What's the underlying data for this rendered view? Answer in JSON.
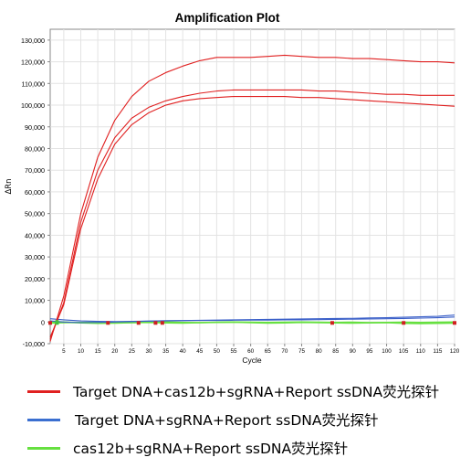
{
  "chart_data": {
    "type": "line",
    "title": "Amplification Plot",
    "xlabel": "Cycle",
    "ylabel": "ΔRn",
    "xlim": [
      1,
      120
    ],
    "ylim": [
      -10000,
      135000
    ],
    "x_ticks": [
      5,
      10,
      15,
      20,
      25,
      30,
      35,
      40,
      45,
      50,
      55,
      60,
      65,
      70,
      75,
      80,
      85,
      90,
      95,
      100,
      105,
      110,
      115,
      120
    ],
    "y_ticks": [
      -10000,
      0,
      10000,
      20000,
      30000,
      40000,
      50000,
      60000,
      70000,
      80000,
      90000,
      100000,
      110000,
      120000,
      130000
    ],
    "y_tick_labels": [
      "-10,000",
      "0",
      "10,000",
      "20,000",
      "30,000",
      "40,000",
      "50,000",
      "60,000",
      "70,000",
      "80,000",
      "90,000",
      "100,000",
      "110,000",
      "120,000",
      "130,000"
    ],
    "grid": true,
    "legend_position": "bottom",
    "x": [
      1,
      5,
      10,
      15,
      20,
      25,
      30,
      35,
      40,
      45,
      50,
      55,
      60,
      65,
      70,
      75,
      80,
      85,
      90,
      95,
      100,
      105,
      110,
      115,
      120
    ],
    "series": [
      {
        "name": "Target DNA+cas12b+sgRNA+Report ssDNA荧光探针",
        "color": "#e02020",
        "values": [
          -9000,
          12000,
          50000,
          76000,
          93000,
          104000,
          111000,
          115000,
          118000,
          120500,
          122000,
          122000,
          122000,
          122500,
          123000,
          122500,
          122000,
          122000,
          121500,
          121500,
          121000,
          120500,
          120000,
          120000,
          119500
        ]
      },
      {
        "name": "",
        "color": "#e02020",
        "values": [
          -8000,
          9000,
          46000,
          70000,
          85000,
          94000,
          99000,
          102000,
          104000,
          105500,
          106500,
          107000,
          107000,
          107000,
          107000,
          107000,
          106500,
          106500,
          106000,
          105500,
          105000,
          105000,
          104500,
          104500,
          104500
        ]
      },
      {
        "name": "",
        "color": "#e02020",
        "values": [
          -7000,
          8000,
          43000,
          66000,
          82000,
          91000,
          96500,
          100000,
          102000,
          103000,
          103500,
          104000,
          104000,
          104000,
          104000,
          103500,
          103500,
          103000,
          102500,
          102000,
          101500,
          101000,
          100500,
          100000,
          99500
        ]
      },
      {
        "name": "Target DNA+sgRNA+Report ssDNA荧光探针",
        "color": "#3a5fc8",
        "values": [
          1500,
          1000,
          500,
          300,
          200,
          300,
          400,
          600,
          700,
          800,
          900,
          1000,
          1100,
          1200,
          1300,
          1400,
          1500,
          1600,
          1700,
          1900,
          2000,
          2200,
          2400,
          2600,
          3200
        ]
      },
      {
        "name": "",
        "color": "#3a5fc8",
        "values": [
          500,
          0,
          -300,
          -200,
          0,
          200,
          400,
          500,
          600,
          700,
          700,
          800,
          900,
          900,
          1000,
          1000,
          1100,
          1200,
          1300,
          1400,
          1500,
          1600,
          1800,
          2000,
          2300
        ]
      },
      {
        "name": "cas12b+sgRNA+Report ssDNA荧光探针",
        "color": "#66e040",
        "values": [
          -500,
          -300,
          -200,
          -100,
          -200,
          -300,
          -100,
          0,
          -200,
          -300,
          -100,
          0,
          -100,
          -200,
          -100,
          0,
          -100,
          -200,
          -100,
          -300,
          -200,
          -100,
          -200,
          -100,
          0
        ]
      },
      {
        "name": "",
        "color": "#66e040",
        "values": [
          200,
          0,
          -400,
          -600,
          -500,
          -300,
          -200,
          -400,
          -500,
          -300,
          -200,
          -100,
          -300,
          -500,
          -400,
          -200,
          -300,
          -400,
          -500,
          -400,
          -300,
          -600,
          -700,
          -600,
          -500
        ]
      }
    ]
  }
}
